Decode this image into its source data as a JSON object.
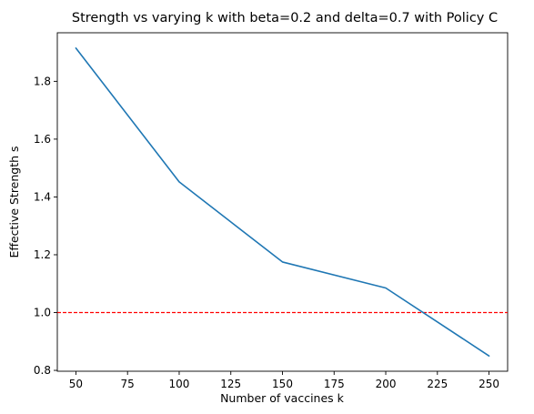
{
  "chart_data": {
    "type": "line",
    "title": "Strength vs varying k with beta=0.2 and delta=0.7 with Policy C",
    "xlabel": "Number of vaccines k",
    "ylabel": "Effective Strength s",
    "x": [
      50,
      100,
      150,
      200,
      250
    ],
    "series": [
      {
        "values": [
          1.915,
          1.452,
          1.175,
          1.085,
          0.85
        ],
        "color": "#1f77b4"
      }
    ],
    "xlim": [
      41,
      259
    ],
    "ylim": [
      0.797,
      1.968
    ],
    "xticks": [
      50,
      75,
      100,
      125,
      150,
      175,
      200,
      225,
      250
    ],
    "yticks": [
      0.8,
      1.0,
      1.2,
      1.4,
      1.6,
      1.8
    ],
    "ytick_labels": [
      "0.8",
      "1.0",
      "1.2",
      "1.4",
      "1.6",
      "1.8"
    ],
    "reference_line": {
      "y": 1.0,
      "color": "#ff0000",
      "style": "dashed"
    },
    "grid": false,
    "legend": "none"
  }
}
